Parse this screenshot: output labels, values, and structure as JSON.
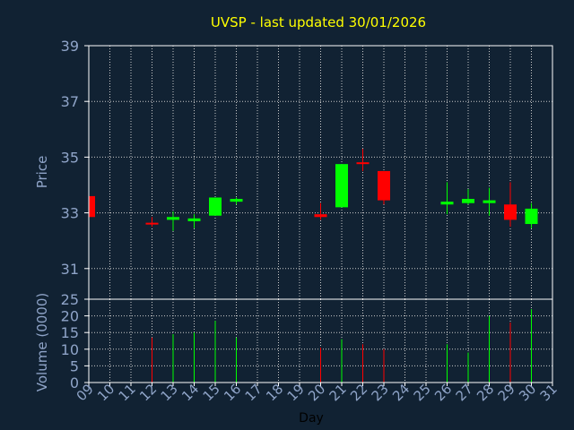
{
  "chart_data": {
    "type": "candlestick",
    "title": "UVSP - last updated 30/01/2026",
    "xlabel": "Day",
    "price_panel": {
      "ylabel": "Price",
      "ylim": [
        29.9,
        39
      ],
      "yticks": [
        31,
        33,
        35,
        37,
        39
      ],
      "grid": true
    },
    "volume_panel": {
      "ylabel": "Volume (0000)",
      "ylim": [
        0,
        25
      ],
      "yticks": [
        0,
        5,
        10,
        15,
        20,
        25
      ],
      "grid": true
    },
    "day_ticks": [
      "09",
      "10",
      "11",
      "12",
      "13",
      "14",
      "15",
      "16",
      "17",
      "18",
      "19",
      "20",
      "21",
      "22",
      "23",
      "24",
      "25",
      "26",
      "27",
      "28",
      "29",
      "30",
      "31"
    ],
    "colors": {
      "up": "#00ff00",
      "down": "#ff0000",
      "background": "#112233",
      "plot_border": "#ffffff",
      "grid": "#cccccc",
      "tick_text": "#8fa4c8",
      "title": "#ffff00"
    },
    "candles": [
      {
        "day": "09",
        "open": 33.6,
        "high": 33.6,
        "low": 32.85,
        "close": 32.85,
        "volume": 0
      },
      {
        "day": "12",
        "open": 32.62,
        "high": 32.85,
        "low": 32.5,
        "close": 32.58,
        "volume": 13.5
      },
      {
        "day": "13",
        "open": 32.75,
        "high": 33.05,
        "low": 32.35,
        "close": 32.85,
        "volume": 14.5
      },
      {
        "day": "14",
        "open": 32.7,
        "high": 32.95,
        "low": 32.45,
        "close": 32.8,
        "volume": 15
      },
      {
        "day": "15",
        "open": 32.9,
        "high": 33.55,
        "low": 32.9,
        "close": 33.55,
        "volume": 18.5
      },
      {
        "day": "16",
        "open": 33.4,
        "high": 33.55,
        "low": 33.3,
        "close": 33.5,
        "volume": 13.5
      },
      {
        "day": "20",
        "open": 32.95,
        "high": 33.35,
        "low": 32.75,
        "close": 32.85,
        "volume": 10.5
      },
      {
        "day": "21",
        "open": 33.2,
        "high": 34.75,
        "low": 33.2,
        "close": 34.75,
        "volume": 13
      },
      {
        "day": "22",
        "open": 34.8,
        "high": 35.3,
        "low": 34.5,
        "close": 34.75,
        "volume": 11.5
      },
      {
        "day": "23",
        "open": 34.5,
        "high": 34.5,
        "low": 33.3,
        "close": 33.45,
        "volume": 10
      },
      {
        "day": "26",
        "open": 33.3,
        "high": 34.1,
        "low": 32.95,
        "close": 33.4,
        "volume": 11.5
      },
      {
        "day": "27",
        "open": 33.35,
        "high": 33.85,
        "low": 33.3,
        "close": 33.5,
        "volume": 9
      },
      {
        "day": "28",
        "open": 33.35,
        "high": 33.9,
        "low": 32.9,
        "close": 33.45,
        "volume": 20
      },
      {
        "day": "29",
        "open": 33.3,
        "high": 34.1,
        "low": 32.5,
        "close": 32.75,
        "volume": 18
      },
      {
        "day": "30",
        "open": 32.6,
        "high": 33.35,
        "low": 32.45,
        "close": 33.15,
        "volume": 22
      }
    ]
  }
}
